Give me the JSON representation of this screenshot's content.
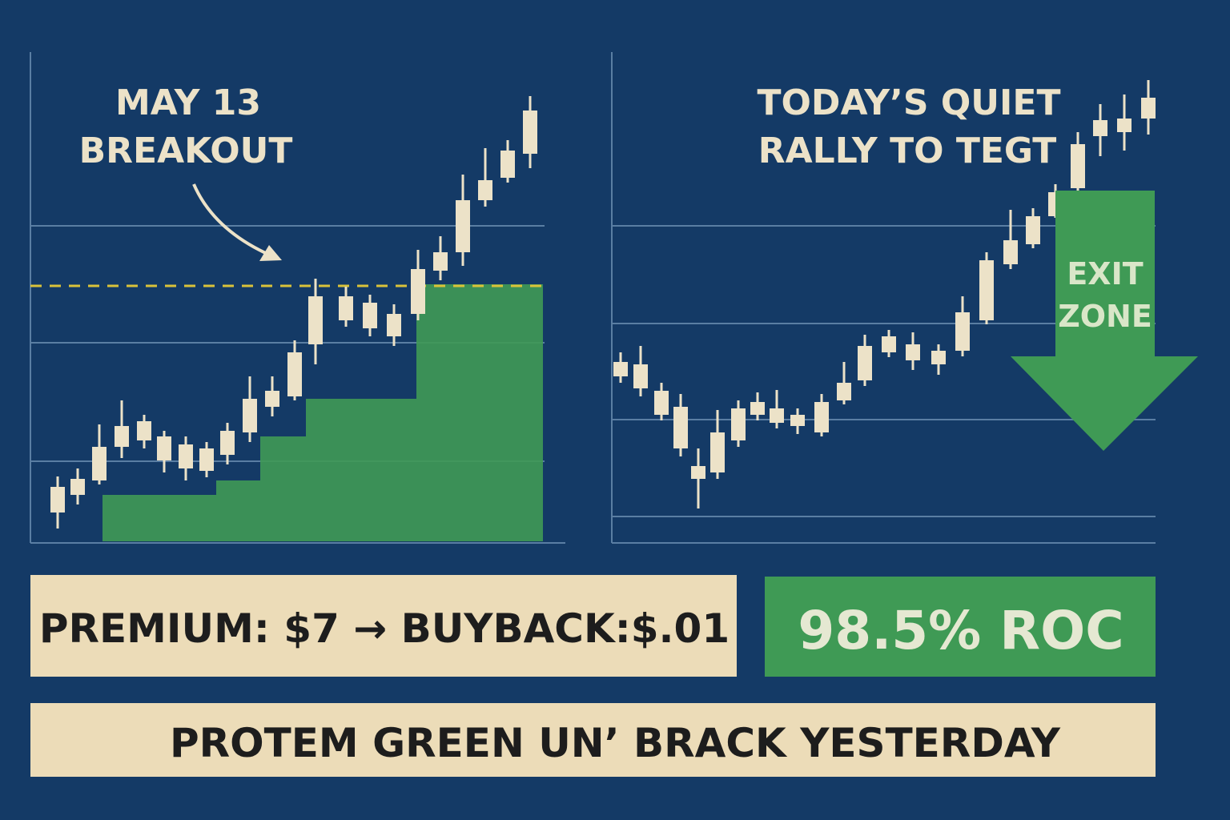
{
  "left_chart": {
    "annotation": [
      "MAY 13",
      "BREAKOUT"
    ]
  },
  "right_chart": {
    "annotation": [
      "TODAY’S QUIET",
      "RALLY TO TEGT"
    ],
    "exit_label": [
      "EXIT",
      "ZONE"
    ]
  },
  "premium_box": "PREMIUM: $7 → BUYBACK:$.01",
  "roc_box": "98.5% ROC",
  "footer": "PROTEM GREEN UN’ BRACK YESTERDAY"
}
